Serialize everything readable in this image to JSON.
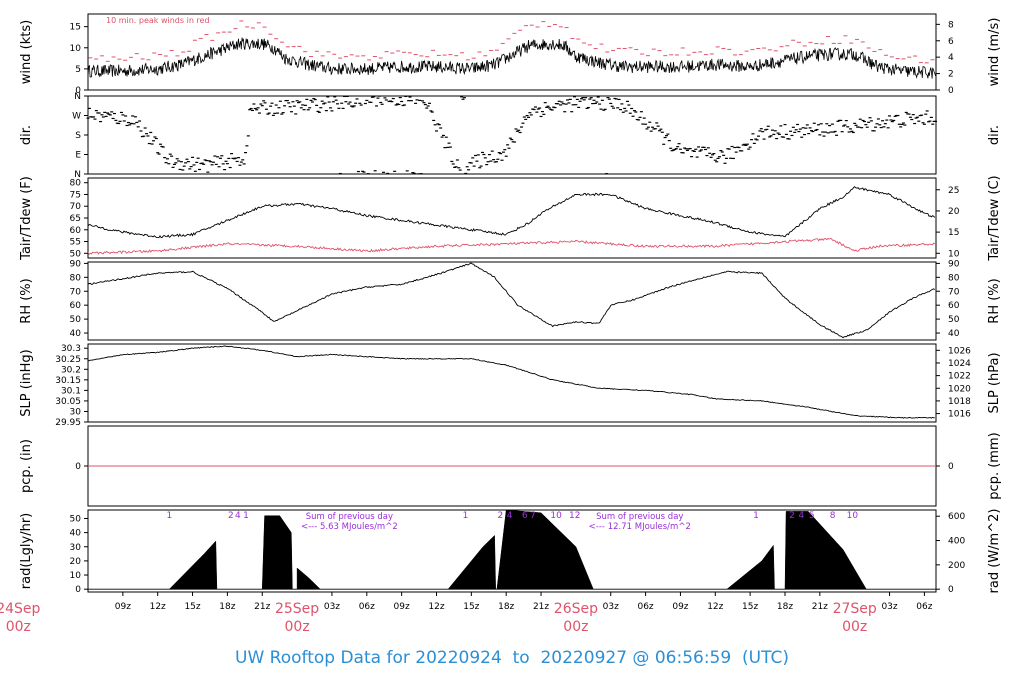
{
  "footer": {
    "label": "UW Rooftop Data for",
    "start": "20220924",
    "to": "to",
    "end": "20220927",
    "at": "@",
    "time": "06:56:59",
    "tz": "(UTC)"
  },
  "colors": {
    "series": "#000000",
    "peak": "#df536b",
    "dew": "#df536b",
    "date": "#df536b",
    "annotation": "#9a2fd6",
    "footer": "#2b8fd6"
  },
  "chart_data": {
    "type": "line",
    "time_axis": {
      "unit": "hours from 2022-09-24 06:00Z",
      "range": [
        0,
        73
      ],
      "ticks": [
        {
          "t": 3,
          "label": "09z"
        },
        {
          "t": 6,
          "label": "12z"
        },
        {
          "t": 9,
          "label": "15z"
        },
        {
          "t": 12,
          "label": "18z"
        },
        {
          "t": 15,
          "label": "21z"
        },
        {
          "t": 21,
          "label": "03z"
        },
        {
          "t": 24,
          "label": "06z"
        },
        {
          "t": 27,
          "label": "09z"
        },
        {
          "t": 30,
          "label": "12z"
        },
        {
          "t": 33,
          "label": "15z"
        },
        {
          "t": 36,
          "label": "18z"
        },
        {
          "t": 39,
          "label": "21z"
        },
        {
          "t": 45,
          "label": "03z"
        },
        {
          "t": 48,
          "label": "06z"
        },
        {
          "t": 51,
          "label": "09z"
        },
        {
          "t": 54,
          "label": "12z"
        },
        {
          "t": 57,
          "label": "15z"
        },
        {
          "t": 60,
          "label": "18z"
        },
        {
          "t": 63,
          "label": "21z"
        },
        {
          "t": 69,
          "label": "03z"
        },
        {
          "t": 72,
          "label": "06z"
        }
      ],
      "dates": [
        {
          "t": -6,
          "day": "24Sep",
          "hour": "00z"
        },
        {
          "t": 18,
          "day": "25Sep",
          "hour": "00z"
        },
        {
          "t": 42,
          "day": "26Sep",
          "hour": "00z"
        },
        {
          "t": 66,
          "day": "27Sep",
          "hour": "00z"
        }
      ]
    },
    "panels": [
      {
        "id": "wind",
        "ylabel_left": "wind (kts)",
        "ylabel_right": "wind (m/s)",
        "ylim": [
          0,
          18
        ],
        "left_ticks": [
          0,
          5,
          10,
          15
        ],
        "right_ticks": [
          {
            "v": 0,
            "label": "0"
          },
          {
            "v": 3.89,
            "label": "2"
          },
          {
            "v": 7.78,
            "label": "4"
          },
          {
            "v": 11.66,
            "label": "6"
          },
          {
            "v": 15.55,
            "label": "8"
          }
        ],
        "note": "10 min. peak winds in red",
        "series": [
          {
            "x": [
              0,
              3,
              6,
              8,
              10,
              12,
              13,
              15,
              16,
              17,
              19,
              21,
              24,
              27,
              30,
              33,
              35,
              37,
              38,
              40,
              41,
              42,
              44,
              46,
              48,
              51,
              54,
              57,
              60,
              62,
              64,
              66,
              68,
              70,
              73
            ],
            "y": [
              4.5,
              4.5,
              5.0,
              6.0,
              8.0,
              10.0,
              11.0,
              11.0,
              10.0,
              7.5,
              6.0,
              5.0,
              5.0,
              5.5,
              5.5,
              5.0,
              6.0,
              9.0,
              10.5,
              11.0,
              10.5,
              8.0,
              6.5,
              5.5,
              5.5,
              5.5,
              6.0,
              5.5,
              7.0,
              8.0,
              8.5,
              8.5,
              5.5,
              4.5,
              4.0
            ]
          },
          {
            "name": "peak",
            "x": [
              0,
              3,
              6,
              8,
              10,
              12,
              13,
              15,
              16,
              17,
              19,
              21,
              24,
              27,
              30,
              33,
              35,
              37,
              38,
              40,
              41,
              42,
              44,
              46,
              48,
              51,
              54,
              57,
              60,
              62,
              64,
              66,
              68,
              70,
              73
            ],
            "y": [
              7.0,
              7.5,
              8.0,
              9.0,
              12.0,
              14.0,
              15.5,
              15.5,
              13.5,
              11.0,
              9.0,
              8.0,
              8.0,
              8.5,
              8.5,
              8.0,
              9.0,
              13.5,
              15.5,
              16.0,
              15.5,
              12.0,
              10.0,
              9.0,
              9.0,
              9.0,
              9.5,
              9.0,
              10.5,
              11.5,
              12.0,
              12.0,
              9.0,
              7.5,
              7.0
            ]
          }
        ]
      },
      {
        "id": "dir",
        "ylabel_left": "dir.",
        "ylabel_right": "dir.",
        "ylim": [
          0,
          360
        ],
        "left_ticks": [
          {
            "v": 0,
            "label": "N"
          },
          {
            "v": 90,
            "label": "E"
          },
          {
            "v": 180,
            "label": "S"
          },
          {
            "v": 270,
            "label": "W"
          },
          {
            "v": 360,
            "label": "N"
          }
        ],
        "series": [
          {
            "x": [
              0,
              4,
              7,
              10,
              13.5,
              14,
              18,
              22,
              25,
              29,
              32,
              34,
              36,
              38,
              41,
              44,
              46,
              49,
              51,
              55,
              58,
              62,
              66,
              70,
              73
            ],
            "y": [
              275,
              250,
              60,
              40,
              70,
              300,
              310,
              330,
              350,
              340,
              10,
              70,
              100,
              290,
              320,
              330,
              320,
              200,
              100,
              80,
              190,
              200,
              220,
              250,
              260
            ]
          }
        ]
      },
      {
        "id": "temp",
        "ylabel_left": "Tair/Tdew (F)",
        "ylabel_right": "Tair/Tdew (C)",
        "ylim": [
          48,
          82
        ],
        "left_ticks": [
          50,
          55,
          60,
          65,
          70,
          75,
          80
        ],
        "right_ticks": [
          {
            "v": 50,
            "label": "10"
          },
          {
            "v": 59,
            "label": "15"
          },
          {
            "v": 68,
            "label": "20"
          },
          {
            "v": 77,
            "label": "25"
          }
        ],
        "series": [
          {
            "name": "Tair",
            "x": [
              0,
              3,
              6,
              9,
              12,
              15,
              18,
              21,
              24,
              27,
              30,
              33,
              36,
              38,
              39,
              42,
              45,
              48,
              51,
              54,
              57,
              60,
              63,
              65,
              66,
              69,
              72,
              73
            ],
            "y": [
              62,
              59,
              57,
              58,
              64,
              70,
              71,
              69,
              66,
              64,
              62,
              60,
              58,
              63,
              67,
              75,
              75,
              69,
              66,
              63,
              59,
              57,
              69,
              74,
              78,
              75,
              67,
              65
            ]
          },
          {
            "name": "Tdew",
            "x": [
              0,
              6,
              12,
              18,
              24,
              30,
              36,
              42,
              48,
              54,
              60,
              64,
              66,
              68,
              73
            ],
            "y": [
              50,
              51,
              54,
              53,
              51,
              53,
              54,
              55,
              53,
              53,
              55,
              56,
              51,
              53,
              54
            ]
          }
        ]
      },
      {
        "id": "rh",
        "ylabel_left": "RH (%)",
        "ylabel_right": "RH (%)",
        "ylim": [
          35,
          91
        ],
        "left_ticks": [
          40,
          50,
          60,
          70,
          80,
          90
        ],
        "right_ticks": [
          {
            "v": 40,
            "label": "40"
          },
          {
            "v": 50,
            "label": "50"
          },
          {
            "v": 60,
            "label": "60"
          },
          {
            "v": 70,
            "label": "70"
          },
          {
            "v": 80,
            "label": "80"
          },
          {
            "v": 90,
            "label": "90"
          }
        ],
        "series": [
          {
            "x": [
              0,
              3,
              6,
              9,
              12,
              15,
              16,
              18,
              21,
              24,
              27,
              30,
              33,
              35,
              37,
              40,
              42,
              44,
              45,
              47,
              50,
              53,
              55,
              58,
              60,
              63,
              65,
              67,
              69,
              71,
              73
            ],
            "y": [
              75,
              79,
              83,
              84,
              72,
              55,
              48,
              56,
              68,
              73,
              75,
              82,
              90,
              80,
              60,
              45,
              48,
              47,
              60,
              64,
              73,
              80,
              84,
              83,
              65,
              46,
              37,
              42,
              55,
              65,
              72
            ]
          }
        ]
      },
      {
        "id": "slp",
        "ylabel_left": "SLP (inHg)",
        "ylabel_right": "SLP (hPa)",
        "ylim": [
          29.95,
          30.32
        ],
        "left_ticks": [
          29.95,
          30.0,
          30.05,
          30.1,
          30.15,
          30.2,
          30.25,
          30.3
        ],
        "right_ticks": [
          {
            "v": 29.99,
            "label": "1016"
          },
          {
            "v": 30.05,
            "label": "1018"
          },
          {
            "v": 30.11,
            "label": "1020"
          },
          {
            "v": 30.17,
            "label": "1022"
          },
          {
            "v": 30.23,
            "label": "1024"
          },
          {
            "v": 30.29,
            "label": "1026"
          }
        ],
        "series": [
          {
            "x": [
              0,
              3,
              6,
              9,
              12,
              15,
              18,
              21,
              24,
              27,
              30,
              33,
              36,
              40,
              44,
              48,
              52,
              54,
              58,
              62,
              66,
              70,
              73
            ],
            "y": [
              30.24,
              30.27,
              30.28,
              30.3,
              30.31,
              30.29,
              30.26,
              30.27,
              30.26,
              30.25,
              30.25,
              30.25,
              30.22,
              30.15,
              30.11,
              30.1,
              30.08,
              30.06,
              30.05,
              30.02,
              29.98,
              29.97,
              29.97
            ]
          }
        ]
      },
      {
        "id": "pcp",
        "ylabel_left": "pcp. (in)",
        "ylabel_right": "pcp. (mm)",
        "ylim": [
          -1,
          1
        ],
        "left_ticks": [
          0
        ],
        "right_ticks": [
          {
            "v": 0,
            "label": "0"
          }
        ],
        "series": [
          {
            "name": "pcp",
            "x": [
              0,
              73
            ],
            "y": [
              0,
              0
            ]
          }
        ]
      },
      {
        "id": "rad",
        "ylabel_left": "rad(Lgly/hr)",
        "ylabel_right": "rad (W/m^2)",
        "ylim": [
          -2,
          56
        ],
        "left_ticks": [
          0,
          10,
          20,
          30,
          40,
          50
        ],
        "right_ticks": [
          {
            "v": 0,
            "label": "0"
          },
          {
            "v": 17.2,
            "label": "200"
          },
          {
            "v": 34.4,
            "label": "400"
          },
          {
            "v": 51.6,
            "label": "600"
          }
        ],
        "series": [
          {
            "name": "day1",
            "x": [
              7,
              10,
              11,
              11.1
            ],
            "y": [
              0,
              25,
              34,
              0
            ]
          },
          {
            "name": "day1b",
            "x": [
              15,
              15.2,
              16.5,
              17.5,
              17.6
            ],
            "y": [
              0,
              52,
              52,
              40,
              0
            ]
          },
          {
            "name": "day1c",
            "x": [
              18,
              19,
              20
            ],
            "y": [
              15,
              8,
              0
            ]
          },
          {
            "name": "day2",
            "x": [
              31,
              34,
              35,
              35.1
            ],
            "y": [
              0,
              30,
              38,
              0
            ]
          },
          {
            "name": "day2b",
            "x": [
              35.2,
              36,
              39,
              42,
              43.5
            ],
            "y": [
              0,
              56,
              54,
              30,
              0
            ]
          },
          {
            "name": "day3",
            "x": [
              55,
              58,
              59,
              59.1
            ],
            "y": [
              0,
              20,
              31,
              0
            ]
          },
          {
            "name": "day3b",
            "x": [
              60,
              60.1,
              62,
              65,
              67
            ],
            "y": [
              0,
              55,
              55,
              28,
              0
            ]
          }
        ],
        "annotations": [
          {
            "t": 7,
            "text": "1"
          },
          {
            "t": 12.3,
            "text": "2"
          },
          {
            "t": 12.9,
            "text": "4"
          },
          {
            "t": 13.6,
            "text": "1"
          },
          {
            "t": 32.5,
            "text": "1"
          },
          {
            "t": 35.5,
            "text": "2"
          },
          {
            "t": 36.3,
            "text": "4"
          },
          {
            "t": 37.6,
            "text": "6"
          },
          {
            "t": 38.3,
            "text": "7"
          },
          {
            "t": 40.3,
            "text": "10"
          },
          {
            "t": 41.9,
            "text": "12"
          },
          {
            "t": 57.5,
            "text": "1"
          },
          {
            "t": 60.6,
            "text": "2"
          },
          {
            "t": 61.4,
            "text": "4"
          },
          {
            "t": 62.3,
            "text": "5"
          },
          {
            "t": 64.1,
            "text": "8"
          },
          {
            "t": 65.8,
            "text": "10"
          }
        ],
        "day_sums": [
          {
            "t": 22.5,
            "line1": "Sum of previous day",
            "line2": "<--- 5.63 MJoules/m^2"
          },
          {
            "t": 47.5,
            "line1": "Sum of previous day",
            "line2": "<--- 12.71 MJoules/m^2"
          }
        ]
      }
    ]
  }
}
